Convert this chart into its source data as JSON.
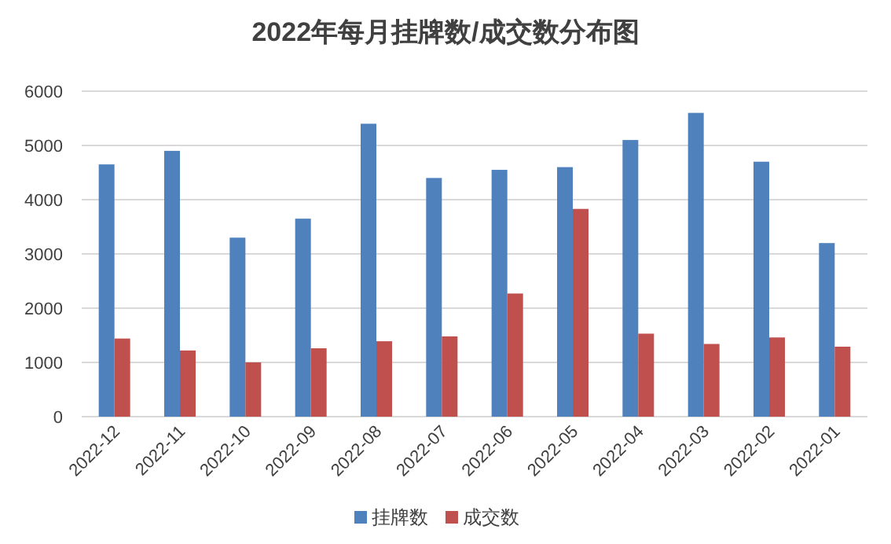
{
  "chart_data": {
    "type": "bar",
    "title": "2022年每月挂牌数/成交数分布图",
    "categories": [
      "2022-12",
      "2022-11",
      "2022-10",
      "2022-09",
      "2022-08",
      "2022-07",
      "2022-06",
      "2022-05",
      "2022-04",
      "2022-03",
      "2022-02",
      "2022-01"
    ],
    "series": [
      {
        "name": "挂牌数",
        "color": "#4f81bd",
        "values": [
          4650,
          4900,
          3300,
          3650,
          5400,
          4400,
          4550,
          4600,
          5100,
          5600,
          4700,
          3200
        ]
      },
      {
        "name": "成交数",
        "color": "#c0504d",
        "values": [
          1440,
          1220,
          1000,
          1260,
          1390,
          1480,
          2270,
          3830,
          1530,
          1340,
          1460,
          1290
        ]
      }
    ],
    "ylim": [
      0,
      6000
    ],
    "yticks": [
      0,
      1000,
      2000,
      3000,
      4000,
      5000,
      6000
    ],
    "grid": "y",
    "legend": "bottom"
  }
}
